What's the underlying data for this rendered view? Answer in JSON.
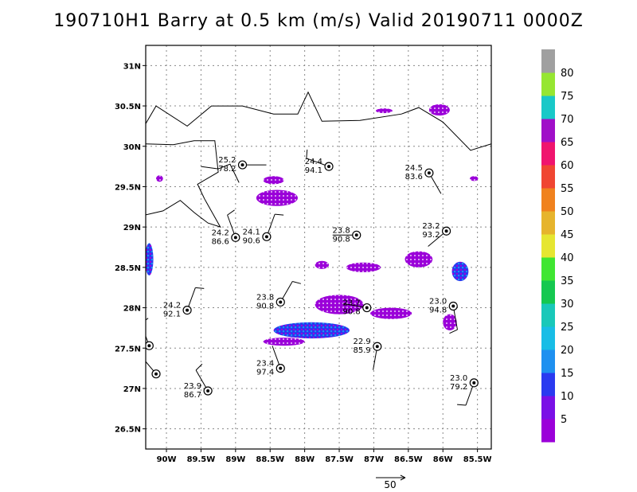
{
  "title": "190710H1 Barry at 0.5 km (m/s) Valid 20190711 0000Z",
  "map": {
    "lon_range": [
      -90.3,
      -85.3
    ],
    "lat_range": [
      26.25,
      31.25
    ],
    "lat_ticks": [
      {
        "value": 31.0,
        "label": "31N"
      },
      {
        "value": 30.5,
        "label": "30.5N"
      },
      {
        "value": 30.0,
        "label": "30N"
      },
      {
        "value": 29.5,
        "label": "29.5N"
      },
      {
        "value": 29.0,
        "label": "29N"
      },
      {
        "value": 28.5,
        "label": "28.5N"
      },
      {
        "value": 28.0,
        "label": "28N"
      },
      {
        "value": 27.5,
        "label": "27.5N"
      },
      {
        "value": 27.0,
        "label": "27N"
      },
      {
        "value": 26.5,
        "label": "26.5N"
      }
    ],
    "lon_ticks": [
      {
        "value": -90.0,
        "label": "90W"
      },
      {
        "value": -89.5,
        "label": "89.5W"
      },
      {
        "value": -89.0,
        "label": "89W"
      },
      {
        "value": -88.5,
        "label": "88.5W"
      },
      {
        "value": -88.0,
        "label": "88W"
      },
      {
        "value": -87.5,
        "label": "87.5W"
      },
      {
        "value": -87.0,
        "label": "87W"
      },
      {
        "value": -86.5,
        "label": "86.5W"
      },
      {
        "value": -86.0,
        "label": "86W"
      },
      {
        "value": -85.5,
        "label": "85.5W"
      }
    ],
    "grid": "dotted",
    "coastlines": [
      [
        [
          -90.3,
          30.28
        ],
        [
          -90.15,
          30.5
        ],
        [
          -89.7,
          30.25
        ],
        [
          -89.35,
          30.5
        ],
        [
          -88.9,
          30.5
        ],
        [
          -88.45,
          30.4
        ],
        [
          -88.1,
          30.4
        ],
        [
          -87.95,
          30.67
        ],
        [
          -87.75,
          30.31
        ],
        [
          -87.2,
          30.32
        ],
        [
          -86.6,
          30.4
        ],
        [
          -86.35,
          30.48
        ],
        [
          -86.0,
          30.3
        ],
        [
          -85.6,
          29.95
        ],
        [
          -85.3,
          30.03
        ]
      ],
      [
        [
          -90.3,
          30.03
        ],
        [
          -89.9,
          30.02
        ],
        [
          -89.6,
          30.07
        ],
        [
          -89.3,
          30.07
        ],
        [
          -89.25,
          29.68
        ],
        [
          -89.55,
          29.53
        ],
        [
          -89.45,
          29.35
        ],
        [
          -89.22,
          29.0
        ],
        [
          -89.4,
          29.05
        ],
        [
          -89.6,
          29.18
        ],
        [
          -89.8,
          29.33
        ],
        [
          -90.05,
          29.2
        ],
        [
          -90.3,
          29.15
        ]
      ],
      [
        [
          -89.5,
          29.75
        ],
        [
          -89.25,
          29.72
        ],
        [
          -89.08,
          29.78
        ],
        [
          -88.95,
          29.55
        ]
      ]
    ]
  },
  "observations": [
    {
      "lat": 29.77,
      "lon": -88.9,
      "temp": "25.2",
      "pres": "78.2",
      "barb_dir": 90,
      "barbs": 0
    },
    {
      "lat": 29.75,
      "lon": -87.65,
      "temp": "24.4",
      "pres": "94.1",
      "barb_dir": 290,
      "barbs": 1
    },
    {
      "lat": 29.67,
      "lon": -86.2,
      "temp": "24.5",
      "pres": "83.6",
      "barb_dir": 150,
      "barbs": 0
    },
    {
      "lat": 28.87,
      "lon": -89.0,
      "temp": "24.2",
      "pres": "86.6",
      "barb_dir": 340,
      "barbs": 1
    },
    {
      "lat": 28.88,
      "lon": -88.55,
      "temp": "24.1",
      "pres": "90.6",
      "barb_dir": 20,
      "barbs": 1
    },
    {
      "lat": 28.9,
      "lon": -87.25,
      "temp": "23.8",
      "pres": "90.8",
      "barb_dir": 270,
      "barbs": 0
    },
    {
      "lat": 28.95,
      "lon": -85.95,
      "temp": "23.2",
      "pres": "93.2",
      "barb_dir": 230,
      "barbs": 0
    },
    {
      "lat": 27.97,
      "lon": -89.7,
      "temp": "24.2",
      "pres": "92.1",
      "barb_dir": 20,
      "barbs": 1
    },
    {
      "lat": 28.07,
      "lon": -88.35,
      "temp": "23.8",
      "pres": "90.8",
      "barb_dir": 30,
      "barbs": 1
    },
    {
      "lat": 28.0,
      "lon": -87.1,
      "temp": "23.7",
      "pres": "90.8",
      "barb_dir": 280,
      "barbs": 0
    },
    {
      "lat": 28.02,
      "lon": -85.85,
      "temp": "23.0",
      "pres": "94.8",
      "barb_dir": 170,
      "barbs": 1
    },
    {
      "lat": 27.52,
      "lon": -86.95,
      "temp": "22.9",
      "pres": "85.9",
      "barb_dir": 190,
      "barbs": 0
    },
    {
      "lat": 27.25,
      "lon": -88.35,
      "temp": "23.4",
      "pres": "97.4",
      "barb_dir": 340,
      "barbs": 0
    },
    {
      "lat": 26.97,
      "lon": -89.4,
      "temp": "23.9",
      "pres": "86.7",
      "barb_dir": 330,
      "barbs": 1
    },
    {
      "lat": 27.07,
      "lon": -85.55,
      "temp": "23.0",
      "pres": "79.2",
      "barb_dir": 200,
      "barbs": 1
    },
    {
      "lat": 27.53,
      "lon": -90.25,
      "temp": "",
      "pres": "",
      "barb_dir": 340,
      "barbs": 1
    },
    {
      "lat": 27.18,
      "lon": -90.15,
      "temp": "",
      "pres": "",
      "barb_dir": 320,
      "barbs": 0
    }
  ],
  "wind_field": [
    {
      "lon": -88.4,
      "lat": 29.36,
      "rx": 0.3,
      "ry": 0.1,
      "level": "purple"
    },
    {
      "lon": -88.45,
      "lat": 29.58,
      "rx": 0.15,
      "ry": 0.05,
      "level": "purple"
    },
    {
      "lon": -87.5,
      "lat": 28.04,
      "rx": 0.35,
      "ry": 0.12,
      "level": "purple"
    },
    {
      "lon": -87.9,
      "lat": 27.72,
      "rx": 0.55,
      "ry": 0.1,
      "level": "blue"
    },
    {
      "lon": -88.3,
      "lat": 27.58,
      "rx": 0.3,
      "ry": 0.05,
      "level": "purple"
    },
    {
      "lon": -86.75,
      "lat": 27.93,
      "rx": 0.3,
      "ry": 0.07,
      "level": "purple"
    },
    {
      "lon": -90.25,
      "lat": 28.6,
      "rx": 0.06,
      "ry": 0.2,
      "level": "blue"
    },
    {
      "lon": -86.35,
      "lat": 28.6,
      "rx": 0.2,
      "ry": 0.1,
      "level": "purple"
    },
    {
      "lon": -85.75,
      "lat": 28.45,
      "rx": 0.12,
      "ry": 0.12,
      "level": "blue"
    },
    {
      "lon": -86.05,
      "lat": 30.45,
      "rx": 0.15,
      "ry": 0.07,
      "level": "purple"
    },
    {
      "lon": -87.15,
      "lat": 28.5,
      "rx": 0.25,
      "ry": 0.06,
      "level": "purple"
    },
    {
      "lon": -87.75,
      "lat": 28.53,
      "rx": 0.1,
      "ry": 0.05,
      "level": "purple"
    },
    {
      "lon": -86.85,
      "lat": 30.44,
      "rx": 0.12,
      "ry": 0.03,
      "level": "purple"
    },
    {
      "lon": -85.9,
      "lat": 27.82,
      "rx": 0.1,
      "ry": 0.1,
      "level": "purple"
    },
    {
      "lon": -90.1,
      "lat": 29.6,
      "rx": 0.05,
      "ry": 0.04,
      "level": "purple"
    },
    {
      "lon": -85.55,
      "lat": 29.6,
      "rx": 0.06,
      "ry": 0.03,
      "level": "purple"
    }
  ],
  "colorbar": {
    "colors": [
      "#9b00d9",
      "#7a10e6",
      "#2a3af0",
      "#1e90f0",
      "#18bde6",
      "#19c8b9",
      "#15c850",
      "#40e632",
      "#e6e632",
      "#e6b42d",
      "#f0821e",
      "#f04632",
      "#f0146e",
      "#a00fc8",
      "#19c8c8",
      "#96e632",
      "#a0a0a0"
    ],
    "labels": [
      "5",
      "10",
      "15",
      "20",
      "25",
      "30",
      "35",
      "40",
      "45",
      "50",
      "55",
      "60",
      "65",
      "70",
      "75",
      "80"
    ]
  },
  "reference_vector": {
    "label": "50"
  }
}
